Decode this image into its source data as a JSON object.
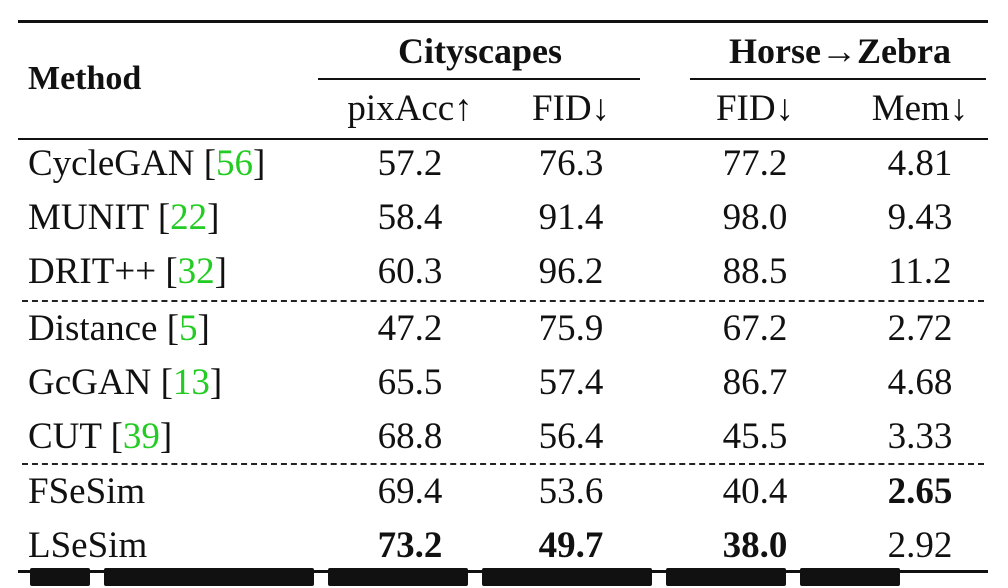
{
  "table": {
    "method_header": "Method",
    "groups": [
      {
        "label": "Cityscapes"
      },
      {
        "label": "Horse→Zebra"
      }
    ],
    "columns": [
      "pixAcc↑",
      "FID↓",
      "FID↓",
      "Mem↓"
    ],
    "rows": [
      {
        "name": "CycleGAN ",
        "cite": "56",
        "values": [
          "57.2",
          "76.3",
          "77.2",
          "4.81"
        ],
        "bold": [
          false,
          false,
          false,
          false
        ]
      },
      {
        "name": "MUNIT ",
        "cite": "22",
        "values": [
          "58.4",
          "91.4",
          "98.0",
          "9.43"
        ],
        "bold": [
          false,
          false,
          false,
          false
        ]
      },
      {
        "name": "DRIT++ ",
        "cite": "32",
        "values": [
          "60.3",
          "96.2",
          "88.5",
          "11.2"
        ],
        "bold": [
          false,
          false,
          false,
          false
        ]
      },
      {
        "name": "Distance ",
        "cite": "5",
        "values": [
          "47.2",
          "75.9",
          "67.2",
          "2.72"
        ],
        "bold": [
          false,
          false,
          false,
          false
        ]
      },
      {
        "name": "GcGAN ",
        "cite": "13",
        "values": [
          "65.5",
          "57.4",
          "86.7",
          "4.68"
        ],
        "bold": [
          false,
          false,
          false,
          false
        ]
      },
      {
        "name": "CUT ",
        "cite": "39",
        "values": [
          "68.8",
          "56.4",
          "45.5",
          "3.33"
        ],
        "bold": [
          false,
          false,
          false,
          false
        ]
      },
      {
        "name": "FSeSim",
        "cite": "",
        "values": [
          "69.4",
          "53.6",
          "40.4",
          "2.65"
        ],
        "bold": [
          false,
          false,
          false,
          true
        ]
      },
      {
        "name": "LSeSim",
        "cite": "",
        "values": [
          "73.2",
          "49.7",
          "38.0",
          "2.92"
        ],
        "bold": [
          true,
          true,
          true,
          false
        ]
      }
    ]
  }
}
